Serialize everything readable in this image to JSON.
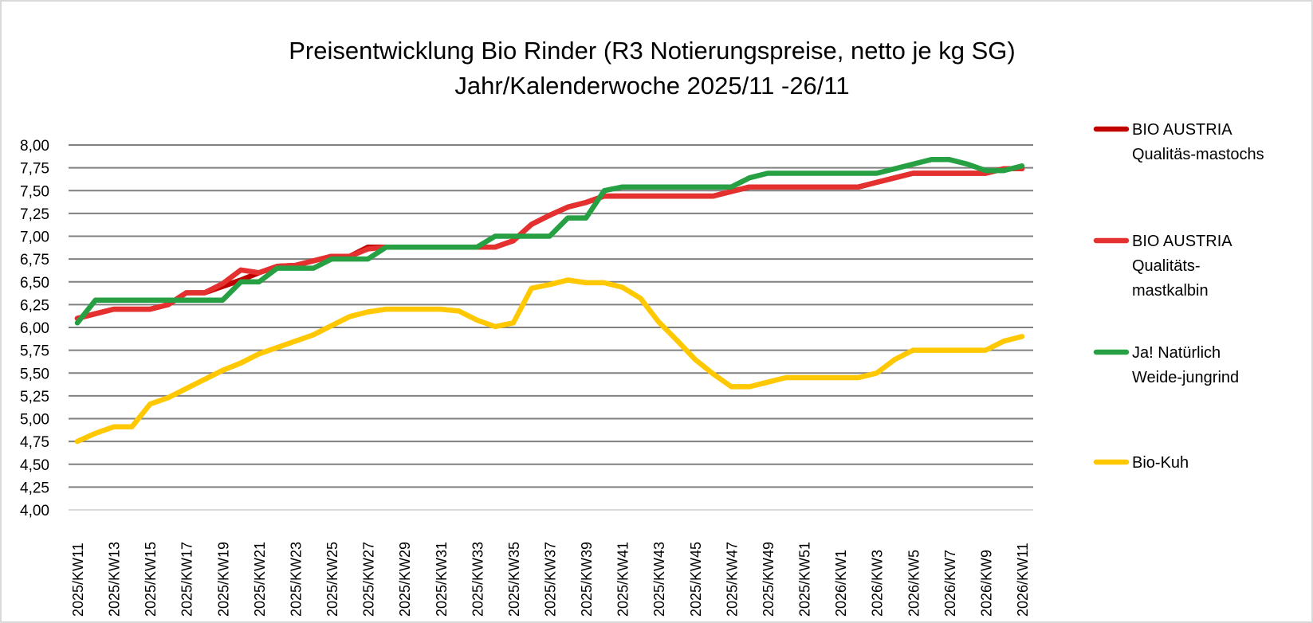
{
  "chart_data": {
    "type": "line",
    "title": "Preisentwicklung Bio Rinder (R3 Notierungspreise, netto je kg SG)",
    "subtitle": "Jahr/Kalenderwoche 2025/11 -26/11",
    "xlabel": "",
    "ylabel": "",
    "ylim": [
      4.0,
      8.0
    ],
    "yticks": [
      "4,00",
      "4,25",
      "4,50",
      "4,75",
      "5,00",
      "5,25",
      "5,50",
      "5,75",
      "6,00",
      "6,25",
      "6,50",
      "6,75",
      "7,00",
      "7,25",
      "7,50",
      "7,75",
      "8,00"
    ],
    "grid": true,
    "legend_position": "right",
    "x": [
      "2025/KW11",
      "2025/KW12",
      "2025/KW13",
      "2025/KW14",
      "2025/KW15",
      "2025/KW16",
      "2025/KW17",
      "2025/KW18",
      "2025/KW19",
      "2025/KW20",
      "2025/KW21",
      "2025/KW22",
      "2025/KW23",
      "2025/KW24",
      "2025/KW25",
      "2025/KW26",
      "2025/KW27",
      "2025/KW28",
      "2025/KW29",
      "2025/KW30",
      "2025/KW31",
      "2025/KW32",
      "2025/KW33",
      "2025/KW34",
      "2025/KW35",
      "2025/KW36",
      "2025/KW37",
      "2025/KW38",
      "2025/KW39",
      "2025/KW40",
      "2025/KW41",
      "2025/KW42",
      "2025/KW43",
      "2025/KW44",
      "2025/KW45",
      "2025/KW46",
      "2025/KW47",
      "2025/KW48",
      "2025/KW49",
      "2025/KW50",
      "2025/KW51",
      "2025/KW52",
      "2026/KW1",
      "2026/KW2",
      "2026/KW3",
      "2026/KW4",
      "2026/KW5",
      "2026/KW6",
      "2026/KW7",
      "2026/KW8",
      "2026/KW9",
      "2026/KW10",
      "2026/KW11"
    ],
    "x_tick_labels": [
      "2025/KW11",
      "2025/KW13",
      "2025/KW15",
      "2025/KW17",
      "2025/KW19",
      "2025/KW21",
      "2025/KW23",
      "2025/KW25",
      "2025/KW27",
      "2025/KW29",
      "2025/KW31",
      "2025/KW33",
      "2025/KW35",
      "2025/KW37",
      "2025/KW39",
      "2025/KW41",
      "2025/KW43",
      "2025/KW45",
      "2025/KW47",
      "2025/KW49",
      "2025/KW51",
      "2026/KW1",
      "2026/KW3",
      "2026/KW5",
      "2026/KW7",
      "2026/KW9",
      "2026/KW11"
    ],
    "series": [
      {
        "name": "BIO AUSTRIA Qualitäs-mastochs",
        "legend_lines": [
          "BIO AUSTRIA",
          "Qualitäs-mastochs"
        ],
        "color": "#c00000",
        "values": [
          6.1,
          6.15,
          6.2,
          6.2,
          6.2,
          6.25,
          6.38,
          6.38,
          6.45,
          6.52,
          6.6,
          6.67,
          6.68,
          6.73,
          6.78,
          6.78,
          6.88,
          6.88,
          6.88,
          6.88,
          6.88,
          6.88,
          6.88,
          6.88,
          6.95,
          7.13,
          7.23,
          7.32,
          7.37,
          7.44,
          7.44,
          7.44,
          7.44,
          7.44,
          7.44,
          7.44,
          7.49,
          7.54,
          7.54,
          7.54,
          7.54,
          7.54,
          7.54,
          7.54,
          7.59,
          7.64,
          7.69,
          7.69,
          7.69,
          7.69,
          7.69,
          7.74,
          7.74
        ]
      },
      {
        "name": "BIO AUSTRIA Qualitäts-mastkalbin",
        "legend_lines": [
          "BIO AUSTRIA",
          "Qualitäts-",
          "mastkalbin"
        ],
        "color": "#e4302e",
        "values": [
          6.1,
          6.15,
          6.2,
          6.2,
          6.2,
          6.25,
          6.38,
          6.38,
          6.48,
          6.63,
          6.6,
          6.67,
          6.68,
          6.73,
          6.78,
          6.78,
          6.86,
          6.88,
          6.88,
          6.88,
          6.88,
          6.88,
          6.88,
          6.88,
          6.95,
          7.13,
          7.23,
          7.32,
          7.37,
          7.44,
          7.44,
          7.44,
          7.44,
          7.44,
          7.44,
          7.44,
          7.49,
          7.54,
          7.54,
          7.54,
          7.54,
          7.54,
          7.54,
          7.54,
          7.59,
          7.64,
          7.69,
          7.69,
          7.69,
          7.69,
          7.69,
          7.74,
          7.74
        ]
      },
      {
        "name": "Ja! Natürlich Weide-jungrind",
        "legend_lines": [
          "Ja! Natürlich",
          "Weide-jungrind"
        ],
        "color": "#27a043",
        "values": [
          6.05,
          6.3,
          6.3,
          6.3,
          6.3,
          6.3,
          6.3,
          6.3,
          6.3,
          6.5,
          6.5,
          6.65,
          6.65,
          6.65,
          6.75,
          6.75,
          6.75,
          6.88,
          6.88,
          6.88,
          6.88,
          6.88,
          6.88,
          7.0,
          7.0,
          7.0,
          7.0,
          7.2,
          7.2,
          7.5,
          7.54,
          7.54,
          7.54,
          7.54,
          7.54,
          7.54,
          7.54,
          7.64,
          7.69,
          7.69,
          7.69,
          7.69,
          7.69,
          7.69,
          7.69,
          7.74,
          7.79,
          7.84,
          7.84,
          7.79,
          7.72,
          7.72,
          7.77
        ]
      },
      {
        "name": "Bio-Kuh",
        "legend_lines": [
          "Bio-Kuh"
        ],
        "color": "#ffc800",
        "values": [
          4.75,
          4.84,
          4.91,
          4.91,
          5.16,
          5.23,
          5.33,
          5.43,
          5.53,
          5.61,
          5.71,
          5.78,
          5.85,
          5.92,
          6.02,
          6.12,
          6.17,
          6.2,
          6.2,
          6.2,
          6.2,
          6.18,
          6.08,
          6.01,
          6.05,
          6.43,
          6.47,
          6.52,
          6.49,
          6.49,
          6.44,
          6.32,
          6.06,
          5.86,
          5.65,
          5.49,
          5.35,
          5.35,
          5.4,
          5.45,
          5.45,
          5.45,
          5.45,
          5.45,
          5.5,
          5.65,
          5.75,
          5.75,
          5.75,
          5.75,
          5.75,
          5.85,
          5.9
        ]
      }
    ]
  },
  "colors": {
    "gridline": "#808080",
    "axis_line": "#d9d9d9",
    "border": "#d9d9d9"
  }
}
